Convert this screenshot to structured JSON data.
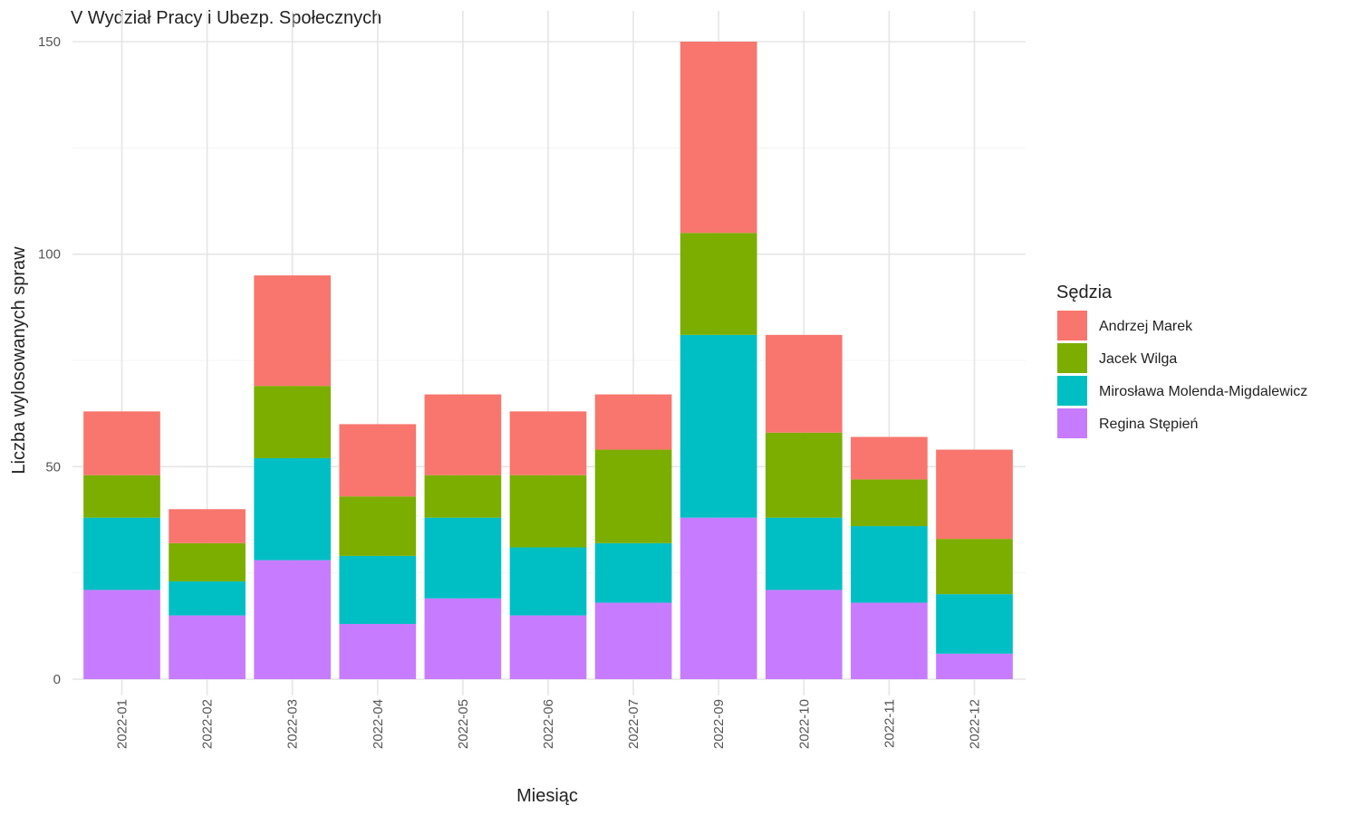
{
  "chart_data": {
    "type": "bar",
    "stacked": true,
    "title": "V Wydział Pracy i Ubezp. Społecznych",
    "xlabel": "Miesiąc",
    "ylabel": "Liczba wylosowanych spraw",
    "ylim": [
      0,
      150
    ],
    "yticks": [
      0,
      50,
      100,
      150
    ],
    "grid": true,
    "legend_title": "Sędzia",
    "legend_position": "right",
    "categories": [
      "2022-01",
      "2022-02",
      "2022-03",
      "2022-04",
      "2022-05",
      "2022-06",
      "2022-07",
      "2022-09",
      "2022-10",
      "2022-11",
      "2022-12"
    ],
    "series": [
      {
        "name": "Regina Stępień",
        "color": "#C77CFF",
        "values": [
          21,
          15,
          28,
          13,
          19,
          15,
          18,
          38,
          21,
          18,
          6
        ]
      },
      {
        "name": "Mirosława Molenda-Migdalewicz",
        "color": "#00BFC4",
        "values": [
          17,
          8,
          24,
          16,
          19,
          16,
          14,
          43,
          17,
          18,
          14
        ]
      },
      {
        "name": "Jacek Wilga",
        "color": "#7CAE00",
        "values": [
          10,
          9,
          17,
          14,
          10,
          17,
          22,
          24,
          20,
          11,
          13
        ]
      },
      {
        "name": "Andrzej Marek",
        "color": "#F8766D",
        "values": [
          15,
          8,
          26,
          17,
          19,
          15,
          13,
          45,
          23,
          10,
          21
        ]
      }
    ],
    "legend_order": [
      "Andrzej Marek",
      "Jacek Wilga",
      "Mirosława Molenda-Migdalewicz",
      "Regina Stępień"
    ]
  }
}
